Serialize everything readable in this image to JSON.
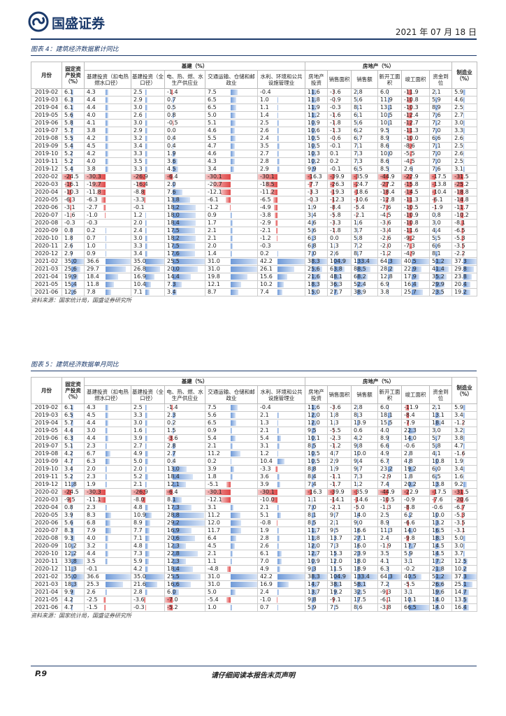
{
  "header": {
    "logo_text": "国盛证券",
    "date": "2021 年 07 月 18 日"
  },
  "tables": [
    {
      "title": "图表 4：建筑经济数据累计同比",
      "headers": {
        "group": [
          "基建（%）",
          "房地产（%）"
        ],
        "columns": [
          "月份",
          "固定资产投资（%）",
          "基建投资（扣电热燃水口径）",
          "基建投资（全口径）",
          "电、热、燃、水生产供应业",
          "交通运输、仓储和邮政业",
          "水利、环境和公共设施管理业",
          "房地产投资",
          "销售面积",
          "销售额",
          "新开工面积",
          "竣工面积",
          "资金到位",
          "制造业（%）"
        ]
      },
      "rows": [
        [
          "2019-02",
          "6.1",
          "4.3",
          "2.5",
          "-1.4",
          "7.5",
          "-0.4",
          "11.6",
          "-3.6",
          "2.8",
          "6.0",
          "-11.9",
          "2.1",
          "5.9"
        ],
        [
          "2019-03",
          "6.3",
          "4.4",
          "2.9",
          "0.7",
          "6.5",
          "1.0",
          "11.8",
          "-0.9",
          "5.6",
          "11.9",
          "-10.8",
          "5.9",
          "4.6"
        ],
        [
          "2019-04",
          "6.1",
          "4.4",
          "3.0",
          "0.5",
          "6.5",
          "1.1",
          "11.9",
          "-0.3",
          "8.1",
          "13.1",
          "-10.3",
          "8.9",
          "2.5"
        ],
        [
          "2019-05",
          "5.6",
          "4.0",
          "2.6",
          "0.8",
          "5.0",
          "1.4",
          "11.2",
          "-1.6",
          "6.1",
          "10.5",
          "-12.4",
          "7.6",
          "2.7"
        ],
        [
          "2019-06",
          "5.8",
          "4.1",
          "3.0",
          "-0.5",
          "5.1",
          "2.5",
          "10.9",
          "-1.8",
          "5.6",
          "10.1",
          "-12.7",
          "7.2",
          "3.0"
        ],
        [
          "2019-07",
          "5.7",
          "3.8",
          "2.9",
          "0.0",
          "4.6",
          "2.6",
          "10.6",
          "-1.3",
          "6.2",
          "9.5",
          "-11.3",
          "7.0",
          "3.3"
        ],
        [
          "2019-08",
          "5.5",
          "4.2",
          "3.2",
          "0.4",
          "5.5",
          "2.4",
          "10.5",
          "-0.6",
          "6.7",
          "8.9",
          "-10.0",
          "6.6",
          "2.6"
        ],
        [
          "2019-09",
          "5.4",
          "4.5",
          "3.4",
          "0.4",
          "4.7",
          "3.5",
          "10.5",
          "-0.1",
          "7.1",
          "8.6",
          "-8.6",
          "7.1",
          "2.5"
        ],
        [
          "2019-10",
          "5.2",
          "4.2",
          "3.3",
          "1.9",
          "4.6",
          "2.7",
          "10.3",
          "0.1",
          "7.3",
          "10.0",
          "-5.5",
          "7.0",
          "2.6"
        ],
        [
          "2019-11",
          "5.2",
          "4.0",
          "3.5",
          "3.6",
          "4.3",
          "2.8",
          "10.2",
          "0.2",
          "7.3",
          "8.6",
          "-4.5",
          "7.0",
          "2.5"
        ],
        [
          "2019-12",
          "5.4",
          "3.8",
          "3.3",
          "4.5",
          "3.4",
          "2.9",
          "9.9",
          "-0.1",
          "6.5",
          "8.5",
          "2.6",
          "7.6",
          "3.1"
        ],
        [
          "2020-02",
          "-24.5",
          "-30.3",
          "-26.9",
          "-6.4",
          "-30.1",
          "-30.1",
          "-16.3",
          "-39.9",
          "-35.9",
          "-44.9",
          "-22.9",
          "-17.5",
          "-31.5"
        ],
        [
          "2020-03",
          "-16.1",
          "-19.7",
          "-16.4",
          "2.0",
          "-20.7",
          "-18.5",
          "-7.7",
          "-26.3",
          "-24.7",
          "-27.2",
          "-15.8",
          "-13.8",
          "-25.2"
        ],
        [
          "2020-04",
          "-10.3",
          "-11.8",
          "-8.8",
          "7.6",
          "-12.1",
          "-11.2",
          "-3.3",
          "-19.3",
          "-18.6",
          "-18.4",
          "-14.5",
          "-10.4",
          "-18.8"
        ],
        [
          "2020-05",
          "-6.3",
          "-6.3",
          "-3.3",
          "13.8",
          "-6.1",
          "-6.5",
          "-0.3",
          "-12.3",
          "-10.6",
          "-12.8",
          "-11.3",
          "-6.1",
          "-14.8"
        ],
        [
          "2020-06",
          "-3.1",
          "-2.7",
          "-0.1",
          "18.2",
          "-1.2",
          "-4.9",
          "1.9",
          "-8.4",
          "-5.4",
          "-7.6",
          "-10.5",
          "-1.9",
          "-11.7"
        ],
        [
          "2020-07",
          "-1.6",
          "-1.0",
          "1.2",
          "18.0",
          "0.9",
          "-3.8",
          "3.4",
          "-5.8",
          "-2.1",
          "-4.5",
          "-10.9",
          "0.8",
          "-10.2"
        ],
        [
          "2020-08",
          "-0.3",
          "-0.3",
          "2.0",
          "18.4",
          "1.7",
          "-2.9",
          "4.6",
          "-3.3",
          "1.6",
          "-3.6",
          "-10.8",
          "3.0",
          "-8.1"
        ],
        [
          "2020-09",
          "0.8",
          "0.2",
          "2.4",
          "17.5",
          "2.1",
          "-2.1",
          "5.6",
          "-1.8",
          "3.7",
          "-3.4",
          "-11.6",
          "4.4",
          "-6.5"
        ],
        [
          "2020-10",
          "1.8",
          "0.7",
          "3.0",
          "18.2",
          "2.1",
          "-1.2",
          "6.3",
          "0.0",
          "5.8",
          "-2.6",
          "-9.2",
          "5.5",
          "-5.3"
        ],
        [
          "2020-11",
          "2.6",
          "1.0",
          "3.3",
          "17.5",
          "2.0",
          "-0.3",
          "6.8",
          "1.3",
          "7.2",
          "-2.0",
          "-7.3",
          "6.6",
          "-3.5"
        ],
        [
          "2020-12",
          "2.9",
          "0.9",
          "3.4",
          "17.6",
          "1.4",
          "0.2",
          "7.0",
          "2.6",
          "8.7",
          "-1.2",
          "-4.9",
          "8.1",
          "-2.2"
        ],
        [
          "2021-02",
          "35.0",
          "36.6",
          "35.0",
          "25.5",
          "31.0",
          "42.2",
          "38.3",
          "104.9",
          "133.4",
          "64.3",
          "40.5",
          "51.2",
          "37.3"
        ],
        [
          "2021-03",
          "25.6",
          "29.7",
          "26.8",
          "20.0",
          "31.0",
          "26.1",
          "25.6",
          "63.8",
          "88.5",
          "28.2",
          "22.9",
          "41.4",
          "29.8"
        ],
        [
          "2021-04",
          "19.9",
          "18.4",
          "16.9",
          "14.4",
          "19.8",
          "15.6",
          "21.6",
          "48.1",
          "68.2",
          "12.8",
          "17.9",
          "35.2",
          "23.8"
        ],
        [
          "2021-05",
          "15.4",
          "11.8",
          "10.4",
          "7.3",
          "12.1",
          "10.2",
          "18.3",
          "36.3",
          "52.4",
          "6.9",
          "16.4",
          "29.9",
          "20.4"
        ],
        [
          "2021-06",
          "12.6",
          "7.8",
          "7.1",
          "3.4",
          "8.7",
          "7.4",
          "15.0",
          "27.7",
          "38.9",
          "3.8",
          "25.7",
          "23.5",
          "19.2"
        ]
      ],
      "source": "资料来源：国家统计局，国盛证券研究所"
    },
    {
      "title": "图表 5：建筑经济数据单月同比",
      "headers": {
        "group": [
          "基建（%）",
          "房地产（%）"
        ],
        "columns": [
          "月份",
          "固定资产投资（%）",
          "基建投资（扣电热燃水口径）",
          "基建投资（全口径）",
          "电、热、燃、水生产供应业",
          "交通运输、仓储和邮政业",
          "水利、环境和公共设施管理业",
          "房地产投资",
          "销售面积",
          "销售额",
          "新开工面积",
          "竣工面积",
          "资金到位",
          "制造业（%）"
        ]
      },
      "rows": [
        [
          "2019-02",
          "6.1",
          "4.3",
          "2.5",
          "-1.4",
          "7.5",
          "-0.4",
          "11.6",
          "-3.6",
          "2.8",
          "6.0",
          "-11.9",
          "2.1",
          "5.9"
        ],
        [
          "2019-03",
          "6.5",
          "4.5",
          "3.3",
          "2.3",
          "5.6",
          "2.1",
          "12.0",
          "1.8",
          "8.3",
          "18.1",
          "-8.4",
          "13.1",
          "3.4"
        ],
        [
          "2019-04",
          "5.7",
          "4.4",
          "3.0",
          "0.2",
          "6.5",
          "1.3",
          "12.0",
          "1.3",
          "13.9",
          "15.5",
          "-7.9",
          "18.4",
          "-1.2"
        ],
        [
          "2019-05",
          "4.4",
          "3.0",
          "1.6",
          "1.5",
          "0.9",
          "2.1",
          "9.5",
          "-5.5",
          "0.6",
          "4.0",
          "22.3",
          "3.0",
          "3.2"
        ],
        [
          "2019-06",
          "6.3",
          "4.4",
          "3.9",
          "-3.6",
          "5.4",
          "5.4",
          "10.1",
          "-2.3",
          "4.2",
          "8.9",
          "14.0",
          "5.7",
          "3.8"
        ],
        [
          "2019-07",
          "5.1",
          "2.3",
          "2.7",
          "2.8",
          "2.1",
          "3.1",
          "8.5",
          "-1.2",
          "9.8",
          "6.6",
          "-0.6",
          "5.8",
          "4.7"
        ],
        [
          "2019-08",
          "4.2",
          "6.7",
          "4.9",
          "2.7",
          "11.2",
          "1.2",
          "10.5",
          "4.7",
          "10.0",
          "4.9",
          "2.8",
          "4.1",
          "-1.6"
        ],
        [
          "2019-09",
          "4.7",
          "6.3",
          "5.0",
          "0.4",
          "0.2",
          "10.4",
          "10.5",
          "2.9",
          "9.4",
          "6.7",
          "4.8",
          "10.8",
          "1.9"
        ],
        [
          "2019-10",
          "3.4",
          "2.0",
          "2.0",
          "13.0",
          "3.9",
          "-3.3",
          "8.8",
          "1.9",
          "9.7",
          "23.2",
          "19.2",
          "6.0",
          "3.4"
        ],
        [
          "2019-11",
          "5.2",
          "2.3",
          "5.2",
          "18.4",
          "1.8",
          "3.6",
          "8.4",
          "-1.1",
          "7.3",
          "-2.9",
          "1.8",
          "6.5",
          "1.6"
        ],
        [
          "2019-12",
          "11.8",
          "1.9",
          "2.1",
          "12.1",
          "-5.1",
          "3.9",
          "7.4",
          "-1.7",
          "1.2",
          "7.4",
          "20.2",
          "13.8",
          "9.2"
        ],
        [
          "2020-02",
          "-24.5",
          "-30.3",
          "-26.9",
          "-6.4",
          "-30.1",
          "-30.1",
          "-16.3",
          "-39.9",
          "-35.9",
          "-44.9",
          "-22.9",
          "-17.5",
          "-31.5"
        ],
        [
          "2020-03",
          "-9.5",
          "-11.1",
          "-8.0",
          "8.1",
          "-12.1",
          "-10.0",
          "1.1",
          "-14.1",
          "-14.6",
          "-10.5",
          "-0.9",
          "-7.6",
          "-20.6"
        ],
        [
          "2020-04",
          "0.8",
          "2.3",
          "4.8",
          "17.3",
          "3.1",
          "2.1",
          "7.0",
          "-2.1",
          "-5.0",
          "-1.3",
          "-8.8",
          "-0.6",
          "-6.7"
        ],
        [
          "2020-05",
          "3.9",
          "8.3",
          "10.9",
          "28.8",
          "11.2",
          "5.1",
          "8.1",
          "9.7",
          "14.0",
          "2.5",
          "6.2",
          "10.0",
          "-5.3"
        ],
        [
          "2020-06",
          "5.6",
          "6.8",
          "8.9",
          "29.2",
          "12.0",
          "-0.8",
          "8.5",
          "2.1",
          "9.0",
          "8.9",
          "-6.6",
          "13.2",
          "-3.5"
        ],
        [
          "2020-07",
          "8.3",
          "7.9",
          "7.7",
          "16.9",
          "11.7",
          "1.9",
          "11.7",
          "9.5",
          "16.6",
          "11.3",
          "14.0",
          "16.5",
          "-3.1"
        ],
        [
          "2020-08",
          "9.3",
          "4.0",
          "7.1",
          "20.6",
          "6.4",
          "2.8",
          "11.8",
          "13.7",
          "27.1",
          "2.4",
          "-9.8",
          "18.3",
          "5.0"
        ],
        [
          "2020-09",
          "10.2",
          "3.2",
          "4.8",
          "12.3",
          "4.5",
          "2.6",
          "12.0",
          "7.3",
          "16.0",
          "-1.9",
          "17.7",
          "14.5",
          "3.0"
        ],
        [
          "2020-10",
          "12.2",
          "4.4",
          "7.3",
          "22.8",
          "2.1",
          "6.1",
          "12.7",
          "15.3",
          "23.9",
          "3.5",
          "5.9",
          "14.5",
          "3.7"
        ],
        [
          "2020-11",
          "33.8",
          "3.5",
          "5.9",
          "12.3",
          "1.1",
          "7.0",
          "10.9",
          "12.0",
          "18.0",
          "4.1",
          "3.1",
          "17.2",
          "12.5"
        ],
        [
          "2020-12",
          "11.3",
          "-0.1",
          "4.2",
          "18.4",
          "-4.8",
          "4.9",
          "9.3",
          "11.5",
          "18.9",
          "6.3",
          "-0.2",
          "21.8",
          "10.2"
        ],
        [
          "2021-02",
          "35.0",
          "36.6",
          "35.0",
          "25.5",
          "31.0",
          "42.2",
          "38.3",
          "104.9",
          "133.4",
          "64.3",
          "40.5",
          "51.2",
          "37.3"
        ],
        [
          "2021-03",
          "18.3",
          "25.3",
          "21.6",
          "16.6",
          "31.0",
          "16.9",
          "14.7",
          "38.1",
          "58.1",
          "7.2",
          "-5.5",
          "26.6",
          "25.1"
        ],
        [
          "2021-04",
          "9.9",
          "2.6",
          "2.8",
          "6.0",
          "5.0",
          "2.4",
          "13.7",
          "19.2",
          "32.5",
          "-9.3",
          "3.1",
          "19.6",
          "14.7"
        ],
        [
          "2021-05",
          "4.2",
          "-2.5",
          "-3.6",
          "-7.0",
          "-5.4",
          "-1.0",
          "9.8",
          "-9.1",
          "17.5",
          "-6.1",
          "10.1",
          "14.0",
          "13.5"
        ],
        [
          "2021-06",
          "4.7",
          "-1.5",
          "-0.3",
          "-5.2",
          "1.0",
          "0.7",
          "5.9",
          "7.5",
          "8.6",
          "-3.8",
          "66.5",
          "14.0",
          "16.4"
        ]
      ],
      "source": "资料来源：国家统计局，国盛证券研究所"
    }
  ],
  "footer": {
    "page": "P.9",
    "notice": "请仔细阅读本报告末页声明"
  }
}
